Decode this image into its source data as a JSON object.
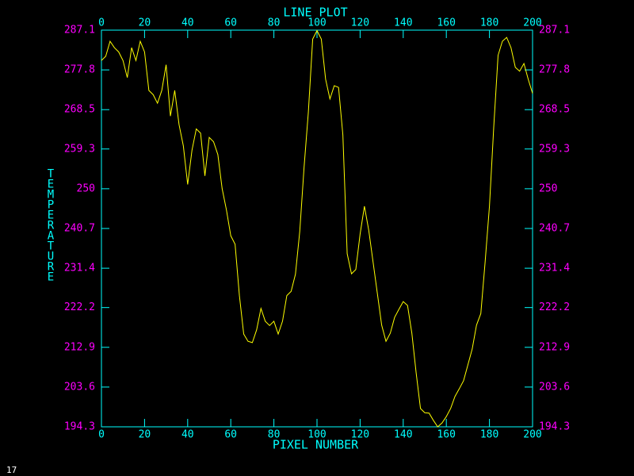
{
  "chart_data": {
    "type": "line",
    "title": "LINE PLOT",
    "x_label": "PIXEL NUMBER",
    "y_label": "TEMPERATURE",
    "x": [
      0,
      2,
      4,
      6,
      8,
      10,
      12,
      14,
      16,
      18,
      20,
      22,
      24,
      26,
      28,
      30,
      32,
      34,
      36,
      38,
      40,
      42,
      44,
      46,
      48,
      50,
      52,
      54,
      56,
      58,
      60,
      62,
      64,
      66,
      68,
      70,
      72,
      74,
      76,
      78,
      80,
      82,
      84,
      86,
      88,
      90,
      92,
      94,
      96,
      98,
      100,
      102,
      104,
      106,
      108,
      110,
      112,
      114,
      116,
      118,
      120,
      122,
      124,
      126,
      128,
      130,
      132,
      134,
      136,
      138,
      140,
      142,
      144,
      146,
      148,
      150,
      152,
      154,
      156,
      158,
      160,
      162,
      164,
      166,
      168,
      170,
      172,
      174,
      176,
      178,
      180,
      182,
      184,
      186,
      188,
      190,
      192,
      194,
      196,
      198,
      200
    ],
    "series": [
      {
        "color": "#ffff00",
        "values": [
          280,
          281,
          284.5,
          283,
          282,
          280,
          276,
          283,
          280,
          284.5,
          282,
          273,
          272,
          270,
          273,
          279,
          267,
          273,
          265,
          260,
          251,
          259,
          264,
          263,
          253,
          262,
          261,
          258,
          250,
          245,
          239,
          237,
          225,
          216,
          214.3,
          214,
          217,
          222,
          219,
          218,
          219,
          216,
          219,
          225,
          226,
          230,
          240,
          255,
          268,
          285,
          287,
          285,
          275.6,
          271,
          274.1,
          273.7,
          262.6,
          234.8,
          230.1,
          231.1,
          239.4,
          245.9,
          240.3,
          232.9,
          225.5,
          218.1,
          214.3,
          216.2,
          219.9,
          221.8,
          223.6,
          222.7,
          216.2,
          206.9,
          198.6,
          197.6,
          197.5,
          195.8,
          194.3,
          195.2,
          196.7,
          198.6,
          201.4,
          203.2,
          205.1,
          208.8,
          212.5,
          218.1,
          220.8,
          232.9,
          245.9,
          264.5,
          281.2,
          284.5,
          285.4,
          283,
          278.4,
          277.5,
          279.3,
          275.6,
          272.3
        ]
      }
    ],
    "xlim": [
      0,
      200
    ],
    "xticks": [
      0,
      20,
      40,
      60,
      80,
      100,
      120,
      140,
      160,
      180,
      200
    ],
    "ylim": [
      194.3,
      287.1
    ],
    "yticks": [
      194.3,
      203.6,
      212.9,
      222.2,
      231.4,
      240.7,
      250,
      259.3,
      268.5,
      277.8,
      287.1
    ],
    "axis_color": "#00ffff",
    "tick_label_color": "#ff00ff"
  },
  "page_label": "17"
}
